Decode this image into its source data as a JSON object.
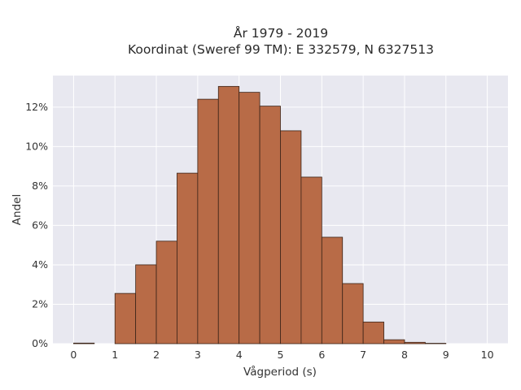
{
  "chart_data": {
    "type": "bar",
    "title_line1": "År 1979 - 2019",
    "title_line2": "Koordinat (Sweref 99 TM): E 332579, N 6327513",
    "xlabel": "Vågperiod (s)",
    "ylabel": "Andel",
    "xlim": [
      -0.5,
      10.5
    ],
    "ylim": [
      0,
      13.6
    ],
    "x_ticks": [
      0,
      1,
      2,
      3,
      4,
      5,
      6,
      7,
      8,
      9,
      10
    ],
    "y_ticks": [
      0,
      2,
      4,
      6,
      8,
      10,
      12
    ],
    "y_tick_labels": [
      "0%",
      "2%",
      "4%",
      "6%",
      "8%",
      "10%",
      "12%"
    ],
    "bin_width": 0.5,
    "bins": [
      {
        "start": 0.0,
        "value": 0.03
      },
      {
        "start": 0.5,
        "value": 0.0
      },
      {
        "start": 1.0,
        "value": 2.55
      },
      {
        "start": 1.5,
        "value": 4.0
      },
      {
        "start": 2.0,
        "value": 5.2
      },
      {
        "start": 2.5,
        "value": 8.65
      },
      {
        "start": 3.0,
        "value": 12.4
      },
      {
        "start": 3.5,
        "value": 13.05
      },
      {
        "start": 4.0,
        "value": 12.75
      },
      {
        "start": 4.5,
        "value": 12.05
      },
      {
        "start": 5.0,
        "value": 10.8
      },
      {
        "start": 5.5,
        "value": 8.45
      },
      {
        "start": 6.0,
        "value": 5.4
      },
      {
        "start": 6.5,
        "value": 3.05
      },
      {
        "start": 7.0,
        "value": 1.1
      },
      {
        "start": 7.5,
        "value": 0.2
      },
      {
        "start": 8.0,
        "value": 0.07
      },
      {
        "start": 8.5,
        "value": 0.02
      },
      {
        "start": 9.0,
        "value": 0.0
      },
      {
        "start": 9.5,
        "value": 0.0
      }
    ],
    "grid": true,
    "colors": {
      "bar_fill": "#b86b47",
      "bar_edge": "#3b2418",
      "plot_bg": "#e8e8f0",
      "grid": "#ffffff"
    }
  }
}
